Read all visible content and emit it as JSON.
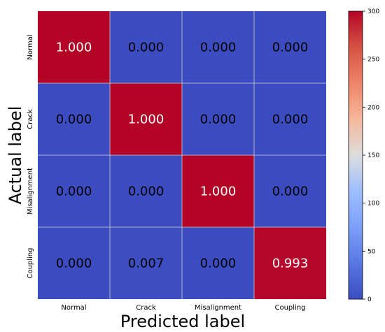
{
  "chart_data": {
    "type": "heatmap",
    "title": "",
    "xlabel": "Predicted label",
    "ylabel": "Actual label",
    "x_categories": [
      "Normal",
      "Crack",
      "Misalignment",
      "Coupling"
    ],
    "y_categories": [
      "Normal",
      "Crack",
      "Misalignment",
      "Coupling"
    ],
    "values": [
      [
        1.0,
        0.0,
        0.0,
        0.0
      ],
      [
        0.0,
        1.0,
        0.0,
        0.0
      ],
      [
        0.0,
        0.0,
        1.0,
        0.0
      ],
      [
        0.0,
        0.007,
        0.0,
        0.993
      ]
    ],
    "value_labels": [
      [
        "1.000",
        "0.000",
        "0.000",
        "0.000"
      ],
      [
        "0.000",
        "1.000",
        "0.000",
        "0.000"
      ],
      [
        "0.000",
        "0.000",
        "1.000",
        "0.000"
      ],
      [
        "0.000",
        "0.007",
        "0.000",
        "0.993"
      ]
    ],
    "colormap": "coolwarm",
    "colorbar": {
      "range": [
        0,
        300
      ],
      "ticks": [
        0,
        50,
        100,
        150,
        200,
        250,
        300
      ]
    },
    "grid": true,
    "colors": {
      "low": "#3b4cc0",
      "mid": "#dddddd",
      "high": "#b40426",
      "grid": "#d0d0d0"
    }
  }
}
